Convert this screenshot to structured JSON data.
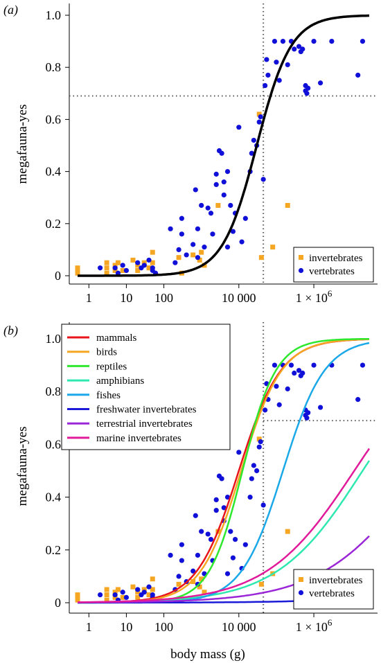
{
  "figure": {
    "xlabel": "body mass (g)"
  },
  "chart_data": [
    {
      "panel_label": "(a)",
      "type": "scatter",
      "x_scale": "log",
      "xlim": [
        0.3,
        50000000
      ],
      "ylim": [
        0,
        1.0
      ],
      "x_ticks": [
        1,
        10,
        100,
        10000,
        1000000
      ],
      "x_tick_labels": [
        "1",
        "10",
        "100",
        "10 000",
        "1 × 10^6"
      ],
      "y_ticks": [
        0,
        0.2,
        0.4,
        0.6,
        0.8,
        1.0
      ],
      "y_tick_labels": [
        "0",
        "0.2",
        "0.4",
        "0.6",
        "0.8",
        "1.0"
      ],
      "ylabel": "megafauna-yes",
      "xlabel": "",
      "grid": false,
      "reference_lines": {
        "vline_x": 45000,
        "hline_y": 0.69
      },
      "legend_position": "bottom-right",
      "legend": [
        {
          "label": "invertebrates",
          "marker": "square",
          "color": "#f5a623"
        },
        {
          "label": "vertebrates",
          "marker": "circle",
          "color": "#1010d8"
        }
      ],
      "curves": [
        {
          "name": "",
          "color": "#000000",
          "logistic": {
            "x50": 30000,
            "slope": 0.95
          }
        }
      ],
      "series": [
        {
          "name": "invertebrates",
          "marker": "square",
          "color": "#f5a623",
          "points": [
            [
              0.5,
              0.03
            ],
            [
              0.5,
              0.02
            ],
            [
              0.5,
              0.01
            ],
            [
              3,
              0.05
            ],
            [
              3,
              0.03
            ],
            [
              3,
              0.01
            ],
            [
              5,
              0.04
            ],
            [
              5,
              0.02
            ],
            [
              6,
              0.05
            ],
            [
              8,
              0.02
            ],
            [
              15,
              0.06
            ],
            [
              20,
              0.04
            ],
            [
              20,
              0.02
            ],
            [
              30,
              0.05
            ],
            [
              40,
              0.03
            ],
            [
              50,
              0.09
            ],
            [
              50,
              0.05
            ],
            [
              250,
              0.07
            ],
            [
              300,
              0.01
            ],
            [
              600,
              0.08
            ],
            [
              900,
              0.06
            ],
            [
              1000,
              0.09
            ],
            [
              1200,
              0.04
            ],
            [
              2800,
              0.27
            ],
            [
              35000,
              0.62
            ],
            [
              40000,
              0.07
            ],
            [
              80000,
              0.11
            ],
            [
              200000,
              0.27
            ]
          ]
        },
        {
          "name": "vertebrates",
          "marker": "circle",
          "color": "#1010d8",
          "points": [
            [
              2,
              0.03
            ],
            [
              5,
              0.03
            ],
            [
              6,
              0.01
            ],
            [
              8,
              0.04
            ],
            [
              10,
              0.02
            ],
            [
              20,
              0.05
            ],
            [
              25,
              0.03
            ],
            [
              30,
              0.04
            ],
            [
              40,
              0.06
            ],
            [
              50,
              0.02
            ],
            [
              50,
              0.03
            ],
            [
              60,
              0.01
            ],
            [
              150,
              0.18
            ],
            [
              200,
              0.05
            ],
            [
              250,
              0.1
            ],
            [
              300,
              0.16
            ],
            [
              300,
              0.22
            ],
            [
              400,
              0.08
            ],
            [
              600,
              0.12
            ],
            [
              700,
              0.33
            ],
            [
              800,
              0.18
            ],
            [
              800,
              0.07
            ],
            [
              1000,
              0.27
            ],
            [
              1200,
              0.11
            ],
            [
              1500,
              0.26
            ],
            [
              1800,
              0.24
            ],
            [
              2000,
              0.16
            ],
            [
              2500,
              0.35
            ],
            [
              2500,
              0.39
            ],
            [
              3000,
              0.48
            ],
            [
              3500,
              0.47
            ],
            [
              4000,
              0.36
            ],
            [
              4000,
              0.31
            ],
            [
              5000,
              0.11
            ],
            [
              5000,
              0.4
            ],
            [
              6000,
              0.27
            ],
            [
              7000,
              0.17
            ],
            [
              8000,
              0.24
            ],
            [
              10000,
              0.57
            ],
            [
              12000,
              0.13
            ],
            [
              15000,
              0.22
            ],
            [
              20000,
              0.4
            ],
            [
              22000,
              0.47
            ],
            [
              25000,
              0.52
            ],
            [
              30000,
              0.5
            ],
            [
              35000,
              0.59
            ],
            [
              38000,
              0.61
            ],
            [
              45000,
              0.37
            ],
            [
              50000,
              0.73
            ],
            [
              55000,
              0.83
            ],
            [
              60000,
              0.77
            ],
            [
              90000,
              0.9
            ],
            [
              100000,
              0.82
            ],
            [
              120000,
              0.75
            ],
            [
              150000,
              0.9
            ],
            [
              200000,
              0.81
            ],
            [
              250000,
              0.9
            ],
            [
              300000,
              0.87
            ],
            [
              400000,
              0.88
            ],
            [
              450000,
              0.86
            ],
            [
              500000,
              0.87
            ],
            [
              600000,
              0.71
            ],
            [
              600000,
              0.73
            ],
            [
              650000,
              0.7
            ],
            [
              700000,
              0.72
            ],
            [
              1000000,
              0.9
            ],
            [
              1500000,
              0.74
            ],
            [
              3000000,
              0.9
            ],
            [
              15000000,
              0.77
            ],
            [
              20000000,
              0.9
            ]
          ]
        }
      ]
    },
    {
      "panel_label": "(b)",
      "type": "scatter",
      "x_scale": "log",
      "xlim": [
        0.3,
        50000000
      ],
      "ylim": [
        0,
        1.0
      ],
      "x_ticks": [
        1,
        10,
        100,
        10000,
        1000000
      ],
      "x_tick_labels": [
        "1",
        "10",
        "100",
        "10 000",
        "1 × 10^6"
      ],
      "y_ticks": [
        0,
        0.2,
        0.4,
        0.6,
        0.8,
        1.0
      ],
      "y_tick_labels": [
        "0",
        "0.2",
        "0.4",
        "0.6",
        "0.8",
        "1.0"
      ],
      "ylabel": "megafauna-yes",
      "xlabel": "body mass (g)",
      "grid": false,
      "reference_lines": {
        "vline_x": 45000,
        "hline_y": 0.69
      },
      "legend_position": "bottom-right",
      "legend": [
        {
          "label": "invertebrates",
          "marker": "square",
          "color": "#f5a623"
        },
        {
          "label": "vertebrates",
          "marker": "circle",
          "color": "#1010d8"
        }
      ],
      "curve_legend_position": "top-left",
      "curves": [
        {
          "name": "mammals",
          "color": "#e8141a",
          "logistic": {
            "x50": 10000,
            "slope": 0.77
          }
        },
        {
          "name": "birds",
          "color": "#f5a623",
          "logistic": {
            "x50": 11500,
            "slope": 0.8
          }
        },
        {
          "name": "reptiles",
          "color": "#2ee82e",
          "logistic": {
            "x50": 12500,
            "slope": 0.97
          }
        },
        {
          "name": "amphibians",
          "color": "#2ee8b0",
          "logistic": {
            "x50": 20000000,
            "slope": 0.38
          }
        },
        {
          "name": "fishes",
          "color": "#1aa8e8",
          "logistic": {
            "x50": 150000,
            "slope": 0.78
          }
        },
        {
          "name": "freshwater invertebrates",
          "color": "#1a1ad8",
          "logistic": {
            "x50": 14000000000000,
            "slope": 0.29
          }
        },
        {
          "name": "terrestrial invertebrates",
          "color": "#9b26d8",
          "logistic": {
            "x50": 800000000,
            "slope": 0.33
          }
        },
        {
          "name": "marine invertebrates",
          "color": "#e01a9a",
          "logistic": {
            "x50": 12000000,
            "slope": 0.37
          }
        }
      ],
      "series": [
        {
          "name": "invertebrates",
          "marker": "square",
          "color": "#f5a623",
          "points": [
            [
              0.5,
              0.03
            ],
            [
              0.5,
              0.02
            ],
            [
              0.5,
              0.01
            ],
            [
              3,
              0.05
            ],
            [
              3,
              0.03
            ],
            [
              3,
              0.01
            ],
            [
              5,
              0.04
            ],
            [
              5,
              0.02
            ],
            [
              6,
              0.05
            ],
            [
              8,
              0.02
            ],
            [
              15,
              0.06
            ],
            [
              20,
              0.04
            ],
            [
              20,
              0.02
            ],
            [
              30,
              0.05
            ],
            [
              40,
              0.03
            ],
            [
              50,
              0.09
            ],
            [
              50,
              0.05
            ],
            [
              250,
              0.07
            ],
            [
              300,
              0.01
            ],
            [
              600,
              0.08
            ],
            [
              900,
              0.06
            ],
            [
              1000,
              0.09
            ],
            [
              1200,
              0.04
            ],
            [
              2800,
              0.27
            ],
            [
              35000,
              0.62
            ],
            [
              40000,
              0.07
            ],
            [
              80000,
              0.11
            ],
            [
              200000,
              0.27
            ]
          ]
        },
        {
          "name": "vertebrates",
          "marker": "circle",
          "color": "#1010d8",
          "points": [
            [
              2,
              0.03
            ],
            [
              5,
              0.03
            ],
            [
              6,
              0.01
            ],
            [
              8,
              0.04
            ],
            [
              10,
              0.02
            ],
            [
              20,
              0.05
            ],
            [
              25,
              0.03
            ],
            [
              30,
              0.04
            ],
            [
              40,
              0.06
            ],
            [
              50,
              0.02
            ],
            [
              50,
              0.03
            ],
            [
              60,
              0.01
            ],
            [
              150,
              0.18
            ],
            [
              200,
              0.05
            ],
            [
              250,
              0.1
            ],
            [
              300,
              0.16
            ],
            [
              300,
              0.22
            ],
            [
              400,
              0.08
            ],
            [
              600,
              0.12
            ],
            [
              700,
              0.33
            ],
            [
              800,
              0.18
            ],
            [
              800,
              0.07
            ],
            [
              1000,
              0.27
            ],
            [
              1200,
              0.11
            ],
            [
              1500,
              0.26
            ],
            [
              1800,
              0.24
            ],
            [
              2000,
              0.16
            ],
            [
              2500,
              0.35
            ],
            [
              2500,
              0.39
            ],
            [
              3000,
              0.48
            ],
            [
              3500,
              0.47
            ],
            [
              4000,
              0.36
            ],
            [
              4000,
              0.31
            ],
            [
              5000,
              0.11
            ],
            [
              5000,
              0.4
            ],
            [
              6000,
              0.27
            ],
            [
              7000,
              0.17
            ],
            [
              8000,
              0.24
            ],
            [
              10000,
              0.57
            ],
            [
              12000,
              0.13
            ],
            [
              15000,
              0.22
            ],
            [
              20000,
              0.4
            ],
            [
              22000,
              0.47
            ],
            [
              25000,
              0.52
            ],
            [
              30000,
              0.5
            ],
            [
              35000,
              0.59
            ],
            [
              38000,
              0.61
            ],
            [
              45000,
              0.37
            ],
            [
              50000,
              0.73
            ],
            [
              55000,
              0.83
            ],
            [
              60000,
              0.77
            ],
            [
              90000,
              0.9
            ],
            [
              100000,
              0.82
            ],
            [
              120000,
              0.75
            ],
            [
              150000,
              0.9
            ],
            [
              200000,
              0.81
            ],
            [
              250000,
              0.9
            ],
            [
              300000,
              0.87
            ],
            [
              400000,
              0.88
            ],
            [
              450000,
              0.86
            ],
            [
              500000,
              0.87
            ],
            [
              600000,
              0.71
            ],
            [
              600000,
              0.73
            ],
            [
              650000,
              0.7
            ],
            [
              700000,
              0.72
            ],
            [
              1000000,
              0.9
            ],
            [
              1500000,
              0.74
            ],
            [
              3000000,
              0.9
            ],
            [
              15000000,
              0.77
            ],
            [
              20000000,
              0.9
            ]
          ]
        }
      ]
    }
  ]
}
